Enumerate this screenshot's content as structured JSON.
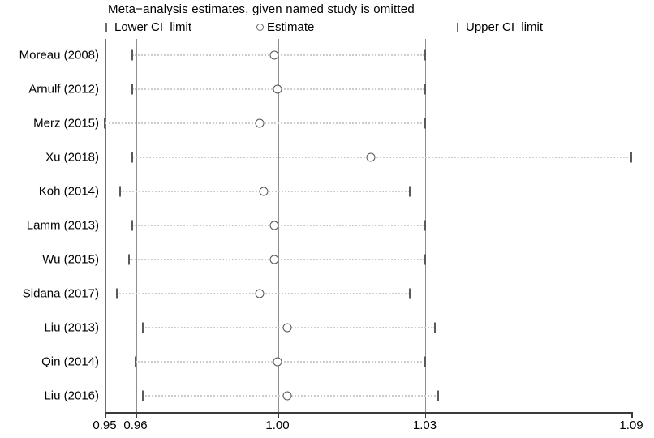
{
  "title": "Meta−analysis estimates, given named study is omitted",
  "legend": {
    "lower_label": "Lower CI  limit",
    "estimate_label": "Estimate",
    "upper_label": "Upper CI  limit"
  },
  "colors": {
    "reference_line": "#8f8f8f",
    "frame": "#707070",
    "axis": "#3a3a3a",
    "marker": "#555555",
    "dotted_ci": "#cccccc"
  },
  "chart_data": {
    "type": "scatter",
    "subtype": "leave-one-out-sensitivity-forest",
    "title": "Meta−analysis estimates, given named study is omitted",
    "xlabel": "",
    "ylabel": "",
    "xlim": [
      0.95,
      1.09
    ],
    "x_tick_values": [
      0.95,
      0.96,
      1.0,
      1.03,
      1.09
    ],
    "x_tick_labels": [
      "0.95",
      "0.96",
      "1.00",
      "1.03",
      "1.09"
    ],
    "reference_line_values": [
      0.96,
      1.0,
      1.03
    ],
    "grid": "off",
    "legend_position": "top",
    "series_meaning": "each row shows pooled estimate with CI when the named study is omitted",
    "studies": [
      {
        "name": "Moreau (2008)",
        "lower": 0.959,
        "estimate": 0.999,
        "upper": 1.03
      },
      {
        "name": "Arnulf (2012)",
        "lower": 0.959,
        "estimate": 1.0,
        "upper": 1.03
      },
      {
        "name": "Merz (2015)",
        "lower": 0.95,
        "estimate": 0.995,
        "upper": 1.03
      },
      {
        "name": "Xu (2018)",
        "lower": 0.959,
        "estimate": 1.019,
        "upper": 1.09
      },
      {
        "name": "Koh (2014)",
        "lower": 0.955,
        "estimate": 0.996,
        "upper": 1.027
      },
      {
        "name": "Lamm (2013)",
        "lower": 0.959,
        "estimate": 0.999,
        "upper": 1.03
      },
      {
        "name": "Wu (2015)",
        "lower": 0.958,
        "estimate": 0.999,
        "upper": 1.03
      },
      {
        "name": "Sidana (2017)",
        "lower": 0.954,
        "estimate": 0.995,
        "upper": 1.027
      },
      {
        "name": "Liu (2013)",
        "lower": 0.962,
        "estimate": 1.002,
        "upper": 1.033
      },
      {
        "name": "Qin (2014)",
        "lower": 0.96,
        "estimate": 1.0,
        "upper": 1.03
      },
      {
        "name": "Liu (2016)",
        "lower": 0.962,
        "estimate": 1.002,
        "upper": 1.034
      }
    ]
  }
}
